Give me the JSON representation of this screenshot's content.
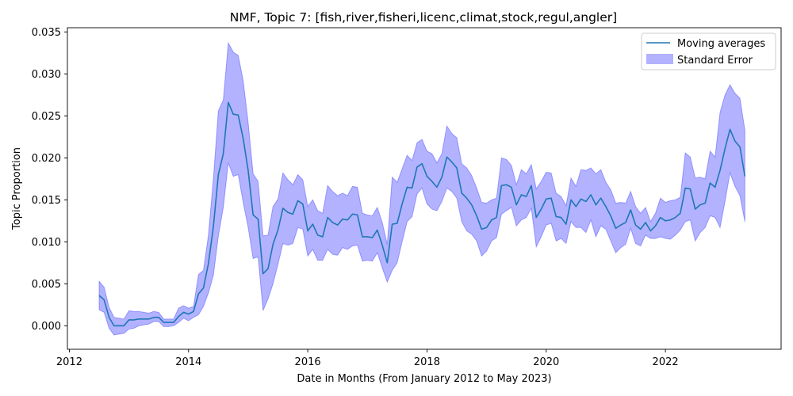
{
  "chart_data": {
    "type": "line",
    "title": "NMF, Topic 7: [fish,river,fisheri,licenc,climat,stock,regul,angler]",
    "xlabel": "Date in Months (From January 2012 to May 2023)",
    "ylabel": "Topic Proportion",
    "xlim": [
      "2011-12-20",
      "2023-12-10"
    ],
    "ylim": [
      -0.0028,
      0.0355
    ],
    "x_ticks": [
      {
        "value": "2012-01-01",
        "label": "2012"
      },
      {
        "value": "2014-01-01",
        "label": "2014"
      },
      {
        "value": "2016-01-01",
        "label": "2016"
      },
      {
        "value": "2018-01-01",
        "label": "2018"
      },
      {
        "value": "2020-01-01",
        "label": "2020"
      },
      {
        "value": "2022-01-01",
        "label": "2022"
      }
    ],
    "y_ticks": [
      {
        "value": 0.0,
        "label": "0.000"
      },
      {
        "value": 0.005,
        "label": "0.005"
      },
      {
        "value": 0.01,
        "label": "0.010"
      },
      {
        "value": 0.015,
        "label": "0.015"
      },
      {
        "value": 0.02,
        "label": "0.020"
      },
      {
        "value": 0.025,
        "label": "0.025"
      },
      {
        "value": 0.03,
        "label": "0.030"
      },
      {
        "value": 0.035,
        "label": "0.035"
      }
    ],
    "grid": false,
    "legend_position": "top-right",
    "series": [
      {
        "name": "Moving averages",
        "kind": "line",
        "color": "#1f77b4",
        "x": [
          "2012-07",
          "2012-08",
          "2012-09",
          "2012-10",
          "2012-11",
          "2012-12",
          "2013-01",
          "2013-02",
          "2013-03",
          "2013-04",
          "2013-05",
          "2013-06",
          "2013-07",
          "2013-08",
          "2013-09",
          "2013-10",
          "2013-11",
          "2013-12",
          "2014-01",
          "2014-02",
          "2014-03",
          "2014-04",
          "2014-05",
          "2014-06",
          "2014-07",
          "2014-08",
          "2014-09",
          "2014-10",
          "2014-11",
          "2014-12",
          "2015-01",
          "2015-02",
          "2015-03",
          "2015-04",
          "2015-05",
          "2015-06",
          "2015-07",
          "2015-08",
          "2015-09",
          "2015-10",
          "2015-11",
          "2015-12",
          "2016-01",
          "2016-02",
          "2016-03",
          "2016-04",
          "2016-05",
          "2016-06",
          "2016-07",
          "2016-08",
          "2016-09",
          "2016-10",
          "2016-11",
          "2016-12",
          "2017-01",
          "2017-02",
          "2017-03",
          "2017-04",
          "2017-05",
          "2017-06",
          "2017-07",
          "2017-08",
          "2017-09",
          "2017-10",
          "2017-11",
          "2017-12",
          "2018-01",
          "2018-02",
          "2018-03",
          "2018-04",
          "2018-05",
          "2018-06",
          "2018-07",
          "2018-08",
          "2018-09",
          "2018-10",
          "2018-11",
          "2018-12",
          "2019-01",
          "2019-02",
          "2019-03",
          "2019-04",
          "2019-05",
          "2019-06",
          "2019-07",
          "2019-08",
          "2019-09",
          "2019-10",
          "2019-11",
          "2019-12",
          "2020-01",
          "2020-02",
          "2020-03",
          "2020-04",
          "2020-05",
          "2020-06",
          "2020-07",
          "2020-08",
          "2020-09",
          "2020-10",
          "2020-11",
          "2020-12",
          "2021-01",
          "2021-02",
          "2021-03",
          "2021-04",
          "2021-05",
          "2021-06",
          "2021-07",
          "2021-08",
          "2021-09",
          "2021-10",
          "2021-11",
          "2021-12",
          "2022-01",
          "2022-02",
          "2022-03",
          "2022-04",
          "2022-05",
          "2022-06",
          "2022-07",
          "2022-08",
          "2022-09",
          "2022-10",
          "2022-11",
          "2022-12",
          "2023-01",
          "2023-02",
          "2023-03",
          "2023-04",
          "2023-05"
        ],
        "values": [
          0.0036,
          0.0031,
          0.001,
          0.0,
          0.0,
          0.0,
          0.0007,
          0.0007,
          0.0008,
          0.0008,
          0.0008,
          0.001,
          0.001,
          0.0004,
          0.0004,
          0.0004,
          0.0011,
          0.0016,
          0.0014,
          0.0017,
          0.0038,
          0.0045,
          0.0074,
          0.0118,
          0.018,
          0.0205,
          0.0266,
          0.0252,
          0.0251,
          0.0223,
          0.0185,
          0.0132,
          0.0127,
          0.0062,
          0.0068,
          0.0097,
          0.0114,
          0.014,
          0.0135,
          0.0133,
          0.0149,
          0.0145,
          0.0113,
          0.0121,
          0.0108,
          0.0106,
          0.0129,
          0.0123,
          0.012,
          0.0127,
          0.0126,
          0.0133,
          0.0132,
          0.0106,
          0.0106,
          0.0105,
          0.0114,
          0.0096,
          0.0075,
          0.0121,
          0.0122,
          0.0145,
          0.0165,
          0.0164,
          0.0189,
          0.0193,
          0.0178,
          0.0172,
          0.0165,
          0.0177,
          0.0201,
          0.0195,
          0.0188,
          0.0158,
          0.0152,
          0.0144,
          0.0131,
          0.0115,
          0.0117,
          0.0126,
          0.0129,
          0.0167,
          0.0168,
          0.0165,
          0.0144,
          0.0156,
          0.0154,
          0.0167,
          0.0129,
          0.0139,
          0.0151,
          0.0152,
          0.013,
          0.0129,
          0.0121,
          0.015,
          0.0142,
          0.0151,
          0.0148,
          0.0156,
          0.0144,
          0.0152,
          0.0142,
          0.0131,
          0.0116,
          0.012,
          0.0123,
          0.0138,
          0.012,
          0.0115,
          0.0123,
          0.0113,
          0.0119,
          0.0129,
          0.0125,
          0.0126,
          0.0129,
          0.0134,
          0.0164,
          0.0163,
          0.0139,
          0.0144,
          0.0146,
          0.017,
          0.0165,
          0.0185,
          0.0211,
          0.0234,
          0.022,
          0.0213,
          0.0178
        ]
      },
      {
        "name": "Standard Error",
        "kind": "band",
        "color": "#0000ff",
        "opacity": 0.3,
        "x_ref": "Moving averages",
        "lower": [
          0.0019,
          0.0016,
          -0.0003,
          -0.0011,
          -0.001,
          -0.0009,
          -0.0004,
          -0.0003,
          0.0,
          0.0001,
          0.0002,
          0.0005,
          0.0005,
          -0.0001,
          -0.0001,
          0.0,
          0.0004,
          0.0009,
          0.0006,
          0.001,
          0.0013,
          0.0023,
          0.0039,
          0.006,
          0.0107,
          0.0141,
          0.0194,
          0.0178,
          0.018,
          0.0147,
          0.0117,
          0.008,
          0.0082,
          0.0018,
          0.0032,
          0.005,
          0.0073,
          0.0098,
          0.0096,
          0.0098,
          0.0117,
          0.0115,
          0.0083,
          0.0091,
          0.0078,
          0.0078,
          0.0091,
          0.0085,
          0.0084,
          0.0093,
          0.0091,
          0.0095,
          0.0096,
          0.0077,
          0.0078,
          0.0077,
          0.0087,
          0.0069,
          0.0052,
          0.0066,
          0.0075,
          0.01,
          0.0124,
          0.013,
          0.0157,
          0.0164,
          0.0145,
          0.0139,
          0.0137,
          0.0148,
          0.0164,
          0.016,
          0.0152,
          0.0124,
          0.0113,
          0.0109,
          0.0101,
          0.0083,
          0.0089,
          0.0101,
          0.0105,
          0.0133,
          0.0137,
          0.0141,
          0.0119,
          0.0126,
          0.0129,
          0.014,
          0.0094,
          0.0106,
          0.012,
          0.0122,
          0.0101,
          0.0104,
          0.0098,
          0.0124,
          0.0117,
          0.0117,
          0.0111,
          0.0126,
          0.0106,
          0.0119,
          0.0115,
          0.0101,
          0.0087,
          0.0093,
          0.0097,
          0.0116,
          0.0098,
          0.0095,
          0.0108,
          0.0104,
          0.0104,
          0.0106,
          0.0104,
          0.0103,
          0.0108,
          0.0114,
          0.0124,
          0.0126,
          0.0101,
          0.0111,
          0.0117,
          0.0131,
          0.0129,
          0.0117,
          0.0148,
          0.0182,
          0.0166,
          0.0155,
          0.0124
        ],
        "upper": [
          0.0053,
          0.0046,
          0.0022,
          0.001,
          0.0009,
          0.0008,
          0.0018,
          0.0017,
          0.0017,
          0.0016,
          0.0015,
          0.0017,
          0.0016,
          0.0008,
          0.0008,
          0.0008,
          0.0021,
          0.0024,
          0.0021,
          0.0023,
          0.0061,
          0.0066,
          0.0108,
          0.0175,
          0.0256,
          0.0269,
          0.0337,
          0.0326,
          0.0322,
          0.0292,
          0.0242,
          0.0181,
          0.0172,
          0.0107,
          0.0108,
          0.0142,
          0.0151,
          0.0182,
          0.0174,
          0.0168,
          0.018,
          0.0174,
          0.0142,
          0.015,
          0.0137,
          0.0134,
          0.0167,
          0.016,
          0.0155,
          0.0158,
          0.0155,
          0.0166,
          0.0165,
          0.0134,
          0.0132,
          0.0131,
          0.0141,
          0.0123,
          0.0097,
          0.0177,
          0.0171,
          0.0187,
          0.0203,
          0.0197,
          0.0218,
          0.0222,
          0.0208,
          0.0205,
          0.0194,
          0.0205,
          0.0238,
          0.0229,
          0.0224,
          0.0193,
          0.0188,
          0.0179,
          0.0164,
          0.0147,
          0.0146,
          0.015,
          0.0152,
          0.02,
          0.0198,
          0.0191,
          0.0168,
          0.0186,
          0.0181,
          0.0192,
          0.0163,
          0.0172,
          0.0183,
          0.0182,
          0.0158,
          0.0154,
          0.0143,
          0.0176,
          0.0166,
          0.0186,
          0.0185,
          0.0188,
          0.0181,
          0.0186,
          0.0171,
          0.0162,
          0.0146,
          0.0147,
          0.0146,
          0.016,
          0.0142,
          0.0134,
          0.0141,
          0.0124,
          0.0134,
          0.0152,
          0.0147,
          0.0149,
          0.015,
          0.0153,
          0.0206,
          0.0201,
          0.0176,
          0.0177,
          0.0175,
          0.0208,
          0.0201,
          0.0254,
          0.0275,
          0.0287,
          0.0277,
          0.0271,
          0.0233
        ]
      }
    ]
  }
}
